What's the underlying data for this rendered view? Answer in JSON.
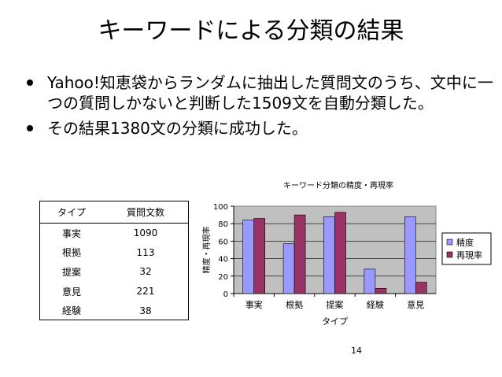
{
  "slide": {
    "title": "キーワードによる分類の結果",
    "bullets": [
      "Yahoo!知恵袋からランダムに抽出した質問文のうち、文中に一つの質問しかないと判断した1509文を自動分類した。",
      "その結果1380文の分類に成功した。"
    ],
    "page_number": "14"
  },
  "table": {
    "headers": [
      "タイプ",
      "質問文数"
    ],
    "rows": [
      [
        "事実",
        "1090"
      ],
      [
        "根拠",
        "113"
      ],
      [
        "提案",
        "32"
      ],
      [
        "意見",
        "221"
      ],
      [
        "経験",
        "38"
      ]
    ]
  },
  "chart_data": {
    "type": "bar",
    "title": "キーワード分類の精度・再現率",
    "xlabel": "タイプ",
    "ylabel": "精度・再現率",
    "categories": [
      "事実",
      "根拠",
      "提案",
      "経験",
      "意見"
    ],
    "series": [
      {
        "name": "精度",
        "values": [
          84,
          57,
          88,
          28,
          88
        ],
        "color": "#9999ff"
      },
      {
        "name": "再現率",
        "values": [
          86,
          90,
          93,
          6,
          13
        ],
        "color": "#993366"
      }
    ],
    "ylim": [
      0,
      100
    ],
    "yticks": [
      0,
      20,
      40,
      60,
      80,
      100
    ],
    "grid": true,
    "legend": "right",
    "plot_background": "#c0c0c0"
  }
}
